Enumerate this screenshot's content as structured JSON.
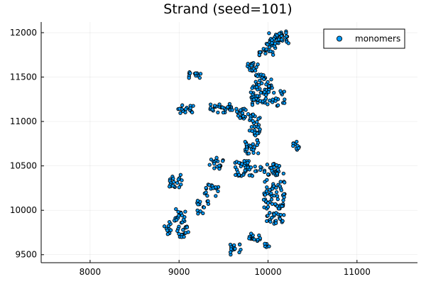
{
  "chart_data": {
    "type": "scatter",
    "title": "Strand (seed=101)",
    "xlabel": "",
    "ylabel": "",
    "xlim": [
      7450,
      11680
    ],
    "ylim": [
      9410,
      12120
    ],
    "xticks": [
      8000,
      9000,
      10000,
      11000
    ],
    "yticks": [
      9500,
      10000,
      10500,
      11000,
      11500,
      12000
    ],
    "grid": true,
    "legend": {
      "position": "top-right",
      "entries": [
        "monomers"
      ]
    },
    "series_color": "#009AFA",
    "clusters": [
      {
        "cx": 10120,
        "cy": 11950,
        "w": 220,
        "h": 140,
        "n": 40
      },
      {
        "cx": 10000,
        "cy": 11820,
        "w": 200,
        "h": 150,
        "n": 25
      },
      {
        "cx": 9830,
        "cy": 11620,
        "w": 140,
        "h": 110,
        "n": 16
      },
      {
        "cx": 9950,
        "cy": 11470,
        "w": 180,
        "h": 130,
        "n": 20
      },
      {
        "cx": 9930,
        "cy": 11300,
        "w": 260,
        "h": 240,
        "n": 55
      },
      {
        "cx": 10130,
        "cy": 11260,
        "w": 130,
        "h": 170,
        "n": 14
      },
      {
        "cx": 9170,
        "cy": 11520,
        "w": 150,
        "h": 70,
        "n": 12
      },
      {
        "cx": 9080,
        "cy": 11140,
        "w": 180,
        "h": 90,
        "n": 18
      },
      {
        "cx": 9480,
        "cy": 11150,
        "w": 260,
        "h": 100,
        "n": 28
      },
      {
        "cx": 9720,
        "cy": 11090,
        "w": 160,
        "h": 120,
        "n": 18
      },
      {
        "cx": 9850,
        "cy": 10960,
        "w": 130,
        "h": 240,
        "n": 28
      },
      {
        "cx": 9810,
        "cy": 10720,
        "w": 160,
        "h": 180,
        "n": 24
      },
      {
        "cx": 9410,
        "cy": 10530,
        "w": 170,
        "h": 130,
        "n": 18
      },
      {
        "cx": 9780,
        "cy": 10470,
        "w": 300,
        "h": 180,
        "n": 40
      },
      {
        "cx": 10070,
        "cy": 10460,
        "w": 230,
        "h": 140,
        "n": 28
      },
      {
        "cx": 10310,
        "cy": 10720,
        "w": 80,
        "h": 120,
        "n": 10
      },
      {
        "cx": 8970,
        "cy": 10330,
        "w": 160,
        "h": 150,
        "n": 20
      },
      {
        "cx": 9360,
        "cy": 10230,
        "w": 180,
        "h": 140,
        "n": 16
      },
      {
        "cx": 9270,
        "cy": 10030,
        "w": 140,
        "h": 160,
        "n": 14
      },
      {
        "cx": 10070,
        "cy": 10180,
        "w": 240,
        "h": 330,
        "n": 60
      },
      {
        "cx": 10070,
        "cy": 9920,
        "w": 220,
        "h": 150,
        "n": 24
      },
      {
        "cx": 9010,
        "cy": 9940,
        "w": 130,
        "h": 160,
        "n": 20
      },
      {
        "cx": 9040,
        "cy": 9760,
        "w": 130,
        "h": 130,
        "n": 18
      },
      {
        "cx": 8860,
        "cy": 9790,
        "w": 120,
        "h": 180,
        "n": 10
      },
      {
        "cx": 9850,
        "cy": 9690,
        "w": 150,
        "h": 110,
        "n": 14
      },
      {
        "cx": 9640,
        "cy": 9560,
        "w": 130,
        "h": 120,
        "n": 14
      },
      {
        "cx": 9990,
        "cy": 9610,
        "w": 60,
        "h": 50,
        "n": 6
      }
    ]
  }
}
